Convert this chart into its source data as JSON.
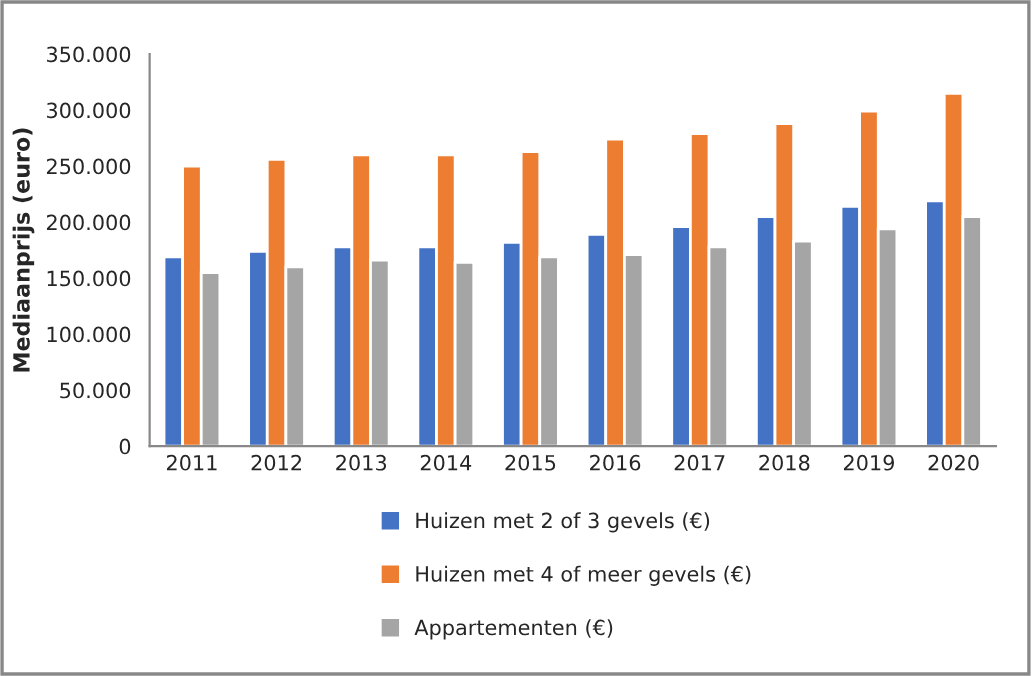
{
  "chart_data": {
    "type": "bar",
    "ylabel": "Mediaanprijs (euro)",
    "categories": [
      "2011",
      "2012",
      "2013",
      "2014",
      "2015",
      "2016",
      "2017",
      "2018",
      "2019",
      "2020"
    ],
    "series": [
      {
        "name": "Huizen met 2 of 3 gevels (€)",
        "color": "#4472c4",
        "values": [
          169000,
          174000,
          178000,
          178000,
          182000,
          189000,
          196000,
          205000,
          214000,
          219000
        ]
      },
      {
        "name": "Huizen met 4 of meer gevels (€)",
        "color": "#ed7d31",
        "values": [
          250000,
          256000,
          260000,
          260000,
          263000,
          274000,
          279000,
          288000,
          299000,
          315000
        ]
      },
      {
        "name": "Appartementen (€)",
        "color": "#a5a5a5",
        "values": [
          155000,
          160000,
          166000,
          164000,
          169000,
          171000,
          178000,
          183000,
          194000,
          205000
        ]
      }
    ],
    "ylim": [
      0,
      350000
    ],
    "yticks": [
      {
        "value": 0,
        "label": "0"
      },
      {
        "value": 50000,
        "label": "50.000"
      },
      {
        "value": 100000,
        "label": "100.000"
      },
      {
        "value": 150000,
        "label": "150.000"
      },
      {
        "value": 200000,
        "label": "200.000"
      },
      {
        "value": 250000,
        "label": "250.000"
      },
      {
        "value": 300000,
        "label": "300.000"
      },
      {
        "value": 350000,
        "label": "350.000"
      }
    ],
    "grid": false,
    "legend": "bottom"
  }
}
